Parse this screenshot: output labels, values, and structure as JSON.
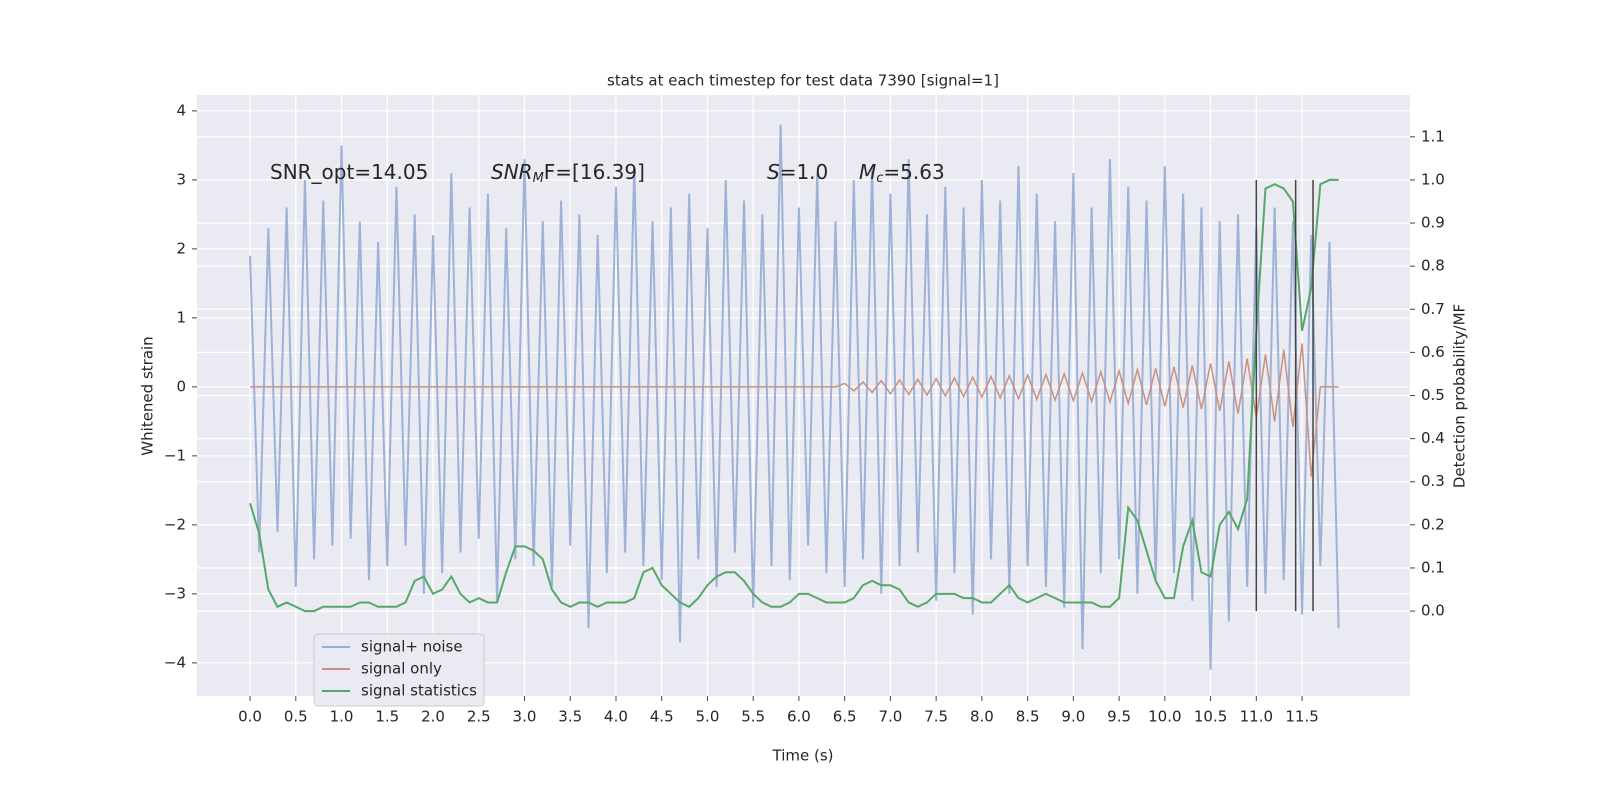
{
  "chart_data": {
    "type": "line",
    "title": "stats at each timestep for test data 7390 [signal=1]",
    "xlabel": "Time (s)",
    "ylabel": "Whitened strain",
    "y2label": "Detection probability/MF",
    "xlim": [
      -0.58,
      12.68
    ],
    "ylim": [
      -4.48,
      4.23
    ],
    "y2lim": [
      -0.197,
      1.197
    ],
    "xticks": [
      {
        "value": 0,
        "label": "0.0"
      },
      0.5,
      {
        "value": 1,
        "label": "1.0"
      },
      1.5,
      {
        "value": 2,
        "label": "2.0"
      },
      2.5,
      {
        "value": 3,
        "label": "3.0"
      },
      3.5,
      {
        "value": 4,
        "label": "4.0"
      },
      4.5,
      {
        "value": 5,
        "label": "5.0"
      },
      5.5,
      {
        "value": 6,
        "label": "6.0"
      },
      6.5,
      {
        "value": 7,
        "label": "7.0"
      },
      7.5,
      {
        "value": 8,
        "label": "8.0"
      },
      8.5,
      {
        "value": 9,
        "label": "9.0"
      },
      9.5,
      {
        "value": 10,
        "label": "10.0"
      },
      10.5,
      {
        "value": 11,
        "label": "11.0"
      },
      11.5
    ],
    "yticks": [
      {
        "value": -4,
        "label": "−4"
      },
      {
        "value": -3,
        "label": "−3"
      },
      {
        "value": -2,
        "label": "−2"
      },
      {
        "value": -1,
        "label": "−1"
      },
      0,
      1,
      2,
      3,
      4
    ],
    "y2ticks": [
      {
        "value": 0,
        "label": "0.0"
      },
      0.1,
      0.2,
      0.3,
      0.4,
      0.5,
      0.6,
      0.7,
      0.8,
      0.9,
      {
        "value": 1,
        "label": "1.0"
      },
      1.1
    ],
    "grid": true,
    "legend": "lower left",
    "x": [
      0,
      0.1,
      0.2,
      0.3,
      0.4,
      0.5,
      0.6,
      0.7,
      0.8,
      0.9,
      1,
      1.1,
      1.2,
      1.3,
      1.4,
      1.5,
      1.6,
      1.7,
      1.8,
      1.9,
      2,
      2.1,
      2.2,
      2.3,
      2.4,
      2.5,
      2.6,
      2.7,
      2.8,
      2.9,
      3,
      3.1,
      3.2,
      3.3,
      3.4,
      3.5,
      3.6,
      3.7,
      3.8,
      3.9,
      4,
      4.1,
      4.2,
      4.3,
      4.4,
      4.5,
      4.6,
      4.7,
      4.8,
      4.9,
      5,
      5.1,
      5.2,
      5.3,
      5.4,
      5.5,
      5.6,
      5.7,
      5.8,
      5.9,
      6,
      6.1,
      6.2,
      6.3,
      6.4,
      6.5,
      6.6,
      6.7,
      6.8,
      6.9,
      7,
      7.1,
      7.2,
      7.3,
      7.4,
      7.5,
      7.6,
      7.7,
      7.8,
      7.9,
      8,
      8.1,
      8.2,
      8.3,
      8.4,
      8.5,
      8.6,
      8.7,
      8.8,
      8.9,
      9,
      9.1,
      9.2,
      9.3,
      9.4,
      9.5,
      9.6,
      9.7,
      9.8,
      9.9,
      10,
      10.1,
      10.2,
      10.3,
      10.4,
      10.5,
      10.6,
      10.7,
      10.8,
      10.9,
      11,
      11.1,
      11.2,
      11.3,
      11.4,
      11.5,
      11.6,
      11.7,
      11.8,
      11.9
    ],
    "series": [
      {
        "name": "signal+ noise",
        "color": "#9aaed4",
        "values": [
          1.9,
          -2.4,
          2.3,
          -2.1,
          2.6,
          -2.9,
          3.0,
          -2.5,
          2.7,
          -2.3,
          3.5,
          -2.2,
          2.4,
          -2.8,
          2.1,
          -2.6,
          2.9,
          -2.3,
          2.5,
          -3.0,
          2.2,
          -2.7,
          3.1,
          -2.4,
          2.6,
          -2.2,
          2.8,
          -3.1,
          2.3,
          -2.5,
          3.3,
          -2.6,
          2.4,
          -2.9,
          2.7,
          -2.3,
          2.5,
          -3.5,
          2.2,
          -2.7,
          2.9,
          -2.4,
          3.2,
          -2.6,
          2.4,
          -2.8,
          2.6,
          -3.7,
          2.8,
          -2.5,
          2.3,
          -2.9,
          3.0,
          -2.4,
          2.7,
          -3.2,
          2.5,
          -2.6,
          3.8,
          -2.8,
          2.6,
          -2.3,
          3.1,
          -2.7,
          2.4,
          -2.9,
          3.0,
          -2.5,
          3.2,
          -3.0,
          2.8,
          -2.6,
          3.3,
          -2.4,
          2.5,
          -3.1,
          2.9,
          -2.7,
          2.6,
          -3.3,
          3.0,
          -2.5,
          2.7,
          -3.0,
          3.2,
          -2.6,
          2.8,
          -2.9,
          2.4,
          -3.2,
          3.1,
          -3.8,
          2.6,
          -2.7,
          3.3,
          -2.5,
          2.9,
          -3.0,
          2.7,
          -2.8,
          3.2,
          -2.7,
          2.8,
          -3.1,
          2.6,
          -4.1,
          2.4,
          -3.4,
          2.5,
          -2.9,
          2.3,
          -3.0,
          2.6,
          -2.8,
          2.4,
          -3.3,
          2.2,
          -2.6,
          2.1,
          -3.5
        ]
      },
      {
        "name": "signal only",
        "color": "#c9927f",
        "values": [
          0,
          0,
          0,
          0,
          0,
          0,
          0,
          0,
          0,
          0,
          0,
          0,
          0,
          0,
          0,
          0,
          0,
          0,
          0,
          0,
          0,
          0,
          0,
          0,
          0,
          0,
          0,
          0,
          0,
          0,
          0,
          0,
          0,
          0,
          0,
          0,
          0,
          0,
          0,
          0,
          0,
          0,
          0,
          0,
          0,
          0,
          0,
          0,
          0,
          0,
          0,
          0,
          0,
          0,
          0,
          0,
          0,
          0,
          0,
          0,
          0,
          0,
          0,
          0,
          0,
          0.05,
          -0.06,
          0.07,
          -0.08,
          0.09,
          -0.1,
          0.1,
          -0.11,
          0.11,
          -0.12,
          0.12,
          -0.13,
          0.13,
          -0.14,
          0.14,
          -0.15,
          0.15,
          -0.16,
          0.16,
          -0.17,
          0.17,
          -0.18,
          0.18,
          -0.19,
          0.19,
          -0.2,
          0.2,
          -0.21,
          0.22,
          -0.22,
          0.23,
          -0.24,
          0.25,
          -0.26,
          0.27,
          -0.28,
          0.29,
          -0.3,
          0.31,
          -0.32,
          0.34,
          -0.35,
          0.37,
          -0.39,
          0.41,
          -0.44,
          0.47,
          -0.5,
          0.54,
          -0.58,
          0.63,
          -1.3,
          0,
          0,
          0
        ]
      },
      {
        "name": "signal statistics",
        "color": "#55a868",
        "axis": "y2",
        "values": [
          0.25,
          0.18,
          0.05,
          0.01,
          0.02,
          0.01,
          0,
          0,
          0.01,
          0.01,
          0.01,
          0.01,
          0.02,
          0.02,
          0.01,
          0.01,
          0.01,
          0.02,
          0.07,
          0.08,
          0.04,
          0.05,
          0.08,
          0.04,
          0.02,
          0.03,
          0.02,
          0.02,
          0.09,
          0.15,
          0.15,
          0.14,
          0.12,
          0.05,
          0.02,
          0.01,
          0.02,
          0.02,
          0.01,
          0.02,
          0.02,
          0.02,
          0.03,
          0.09,
          0.1,
          0.06,
          0.04,
          0.02,
          0.01,
          0.03,
          0.06,
          0.08,
          0.09,
          0.09,
          0.07,
          0.04,
          0.02,
          0.01,
          0.01,
          0.02,
          0.04,
          0.04,
          0.03,
          0.02,
          0.02,
          0.02,
          0.03,
          0.06,
          0.07,
          0.06,
          0.06,
          0.05,
          0.02,
          0.01,
          0.02,
          0.04,
          0.04,
          0.04,
          0.03,
          0.03,
          0.02,
          0.02,
          0.04,
          0.06,
          0.03,
          0.02,
          0.03,
          0.04,
          0.03,
          0.02,
          0.02,
          0.02,
          0.02,
          0.01,
          0.01,
          0.03,
          0.24,
          0.21,
          0.14,
          0.07,
          0.03,
          0.03,
          0.15,
          0.21,
          0.09,
          0.08,
          0.2,
          0.23,
          0.19,
          0.26,
          0.65,
          0.98,
          0.99,
          0.98,
          0.95,
          0.65,
          0.75,
          0.99,
          1,
          1
        ]
      }
    ],
    "vlines": {
      "x": [
        11.0,
        11.43,
        11.62
      ],
      "range": [
        0,
        1
      ],
      "color": "#444444"
    },
    "annotations": [
      [
        {
          "text": "SNR_opt=14.05"
        }
      ],
      [
        {
          "text": "SNR",
          "style": "italic"
        },
        {
          "text": "M",
          "style": "sub"
        },
        {
          "text": "F=[16.39]"
        }
      ],
      [
        {
          "text": "S",
          "style": "italic"
        },
        {
          "text": "=1.0"
        }
      ],
      [
        {
          "text": "M",
          "style": "italic"
        },
        {
          "text": "c",
          "style": "sub"
        },
        {
          "text": "=5.63"
        }
      ]
    ]
  }
}
